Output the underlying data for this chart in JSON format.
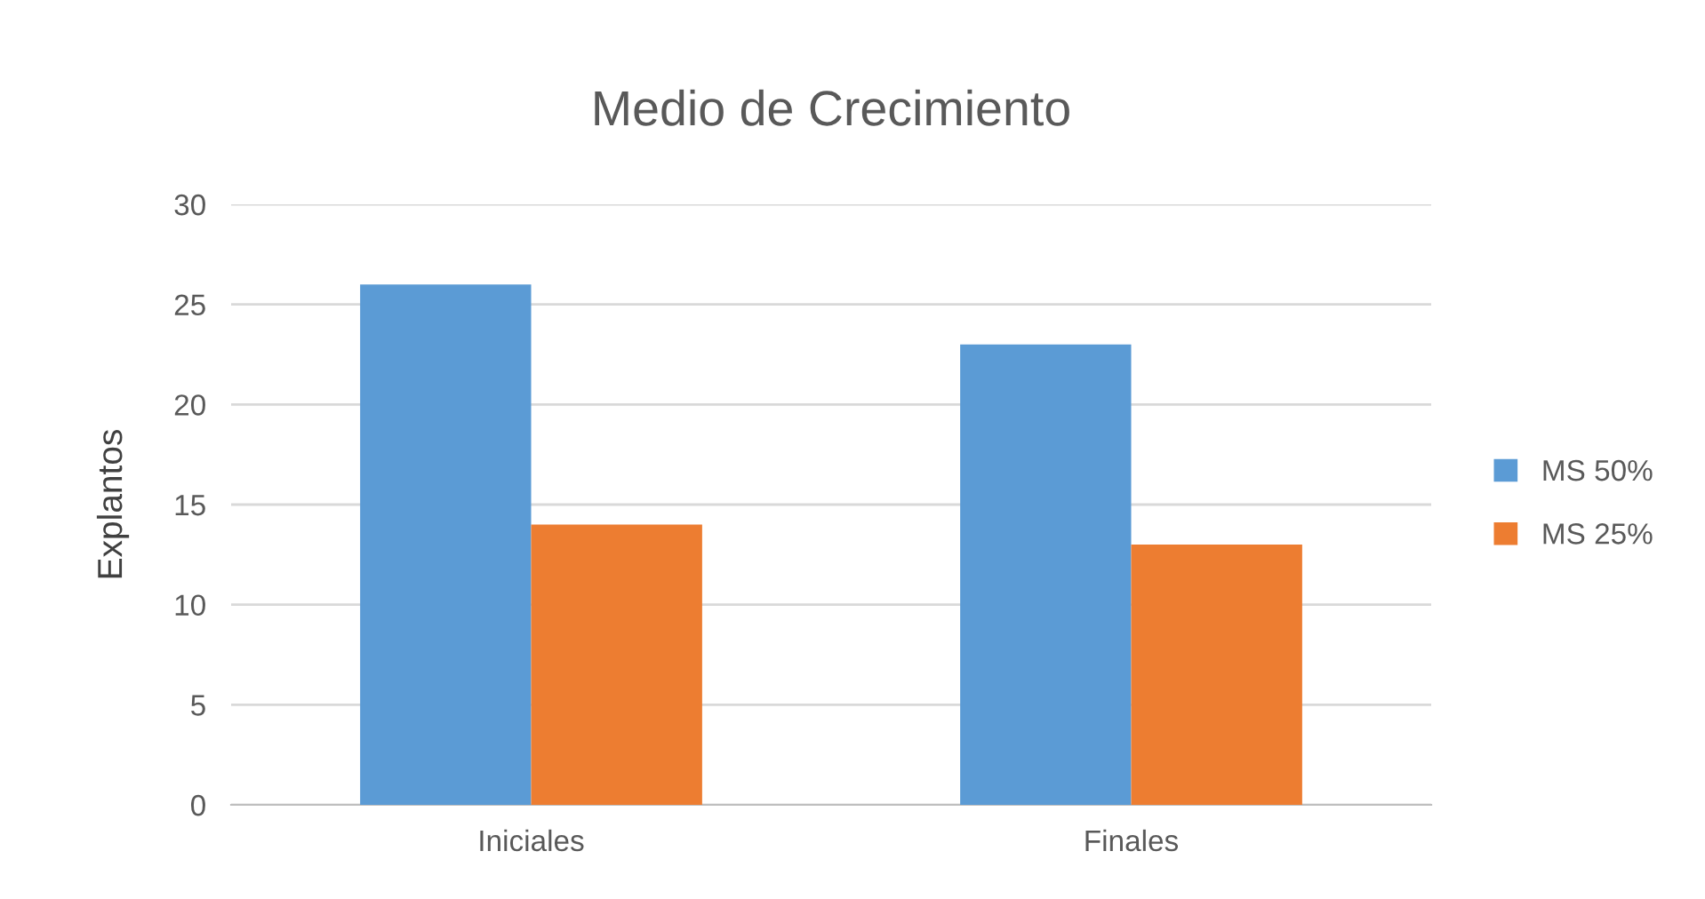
{
  "chart_data": {
    "type": "bar",
    "title": "Medio de Crecimiento",
    "ylabel": "Explantos",
    "categories": [
      "Iniciales",
      "Finales"
    ],
    "series": [
      {
        "name": "MS 50%",
        "color": "#5b9bd5",
        "values": [
          26,
          23
        ]
      },
      {
        "name": "MS 25%",
        "color": "#ed7d31",
        "values": [
          14,
          13
        ]
      }
    ],
    "ylim": [
      0,
      30
    ],
    "yticks": [
      0,
      5,
      10,
      15,
      20,
      25,
      30
    ],
    "grid": "y",
    "legend": "right"
  }
}
